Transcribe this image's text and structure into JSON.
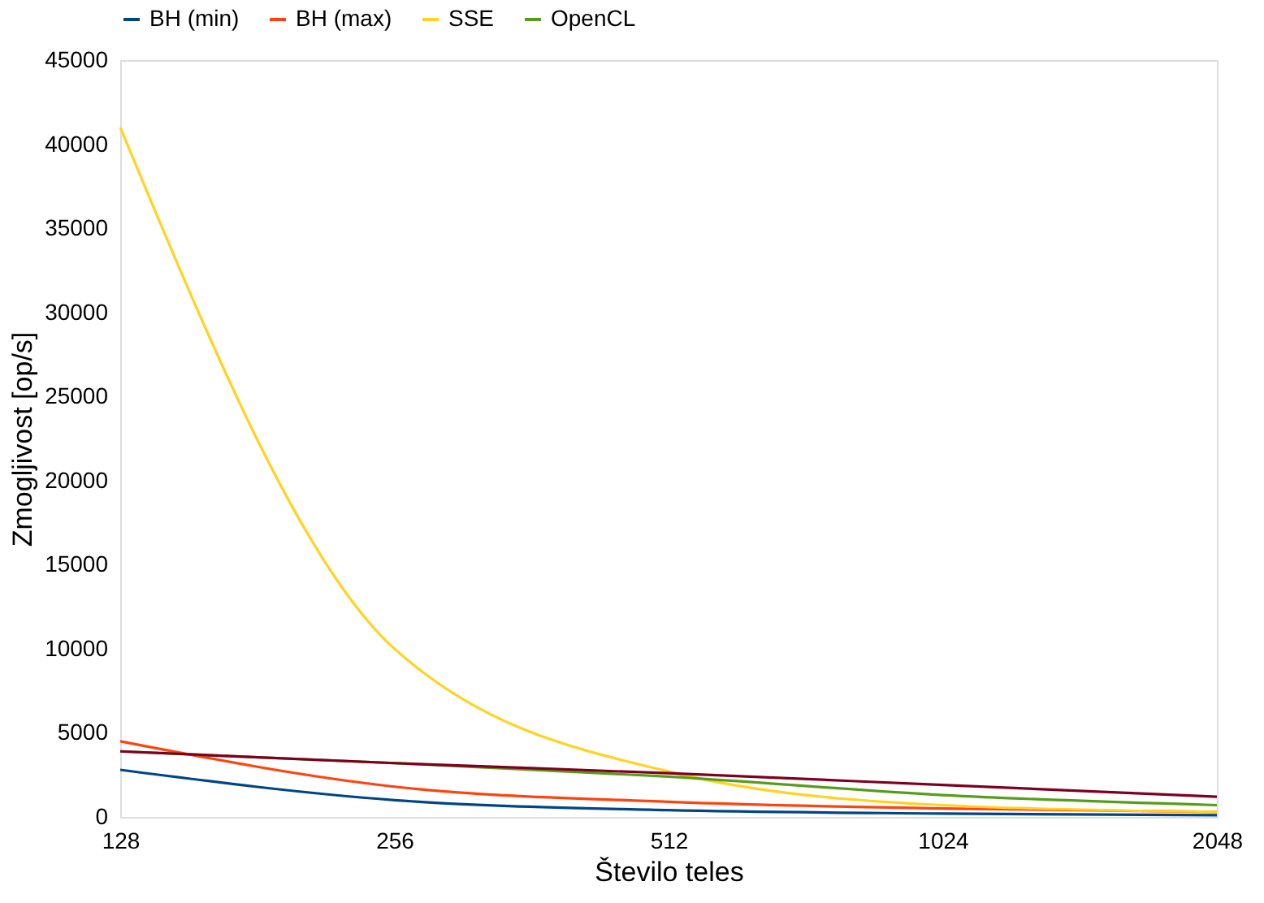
{
  "chart_data": {
    "type": "line",
    "xlabel": "Število teles",
    "ylabel": "Zmogljivost [op/s]",
    "categories": [
      "128",
      "256",
      "512",
      "1024",
      "2048"
    ],
    "series": [
      {
        "name": "BH (min)",
        "color": "#004586",
        "values": [
          2800,
          1000,
          400,
          200,
          100
        ]
      },
      {
        "name": "BH (max)",
        "color": "#ff420e",
        "values": [
          4500,
          1800,
          900,
          500,
          300
        ]
      },
      {
        "name": "SSE",
        "color": "#ffd320",
        "values": [
          41000,
          10000,
          2700,
          700,
          300
        ]
      },
      {
        "name": "OpenCL",
        "color": "#579d1c",
        "values": [
          3900,
          3200,
          2400,
          1300,
          700
        ]
      },
      {
        "color": "#7e0021",
        "values": [
          3900,
          3200,
          2600,
          1900,
          1200
        ]
      }
    ],
    "ylim": [
      0,
      45000
    ],
    "yticks": [
      0,
      5000,
      10000,
      15000,
      20000,
      25000,
      30000,
      35000,
      40000,
      45000
    ],
    "grid": false,
    "legend": "top",
    "marker": "none",
    "line_style": "solid"
  }
}
